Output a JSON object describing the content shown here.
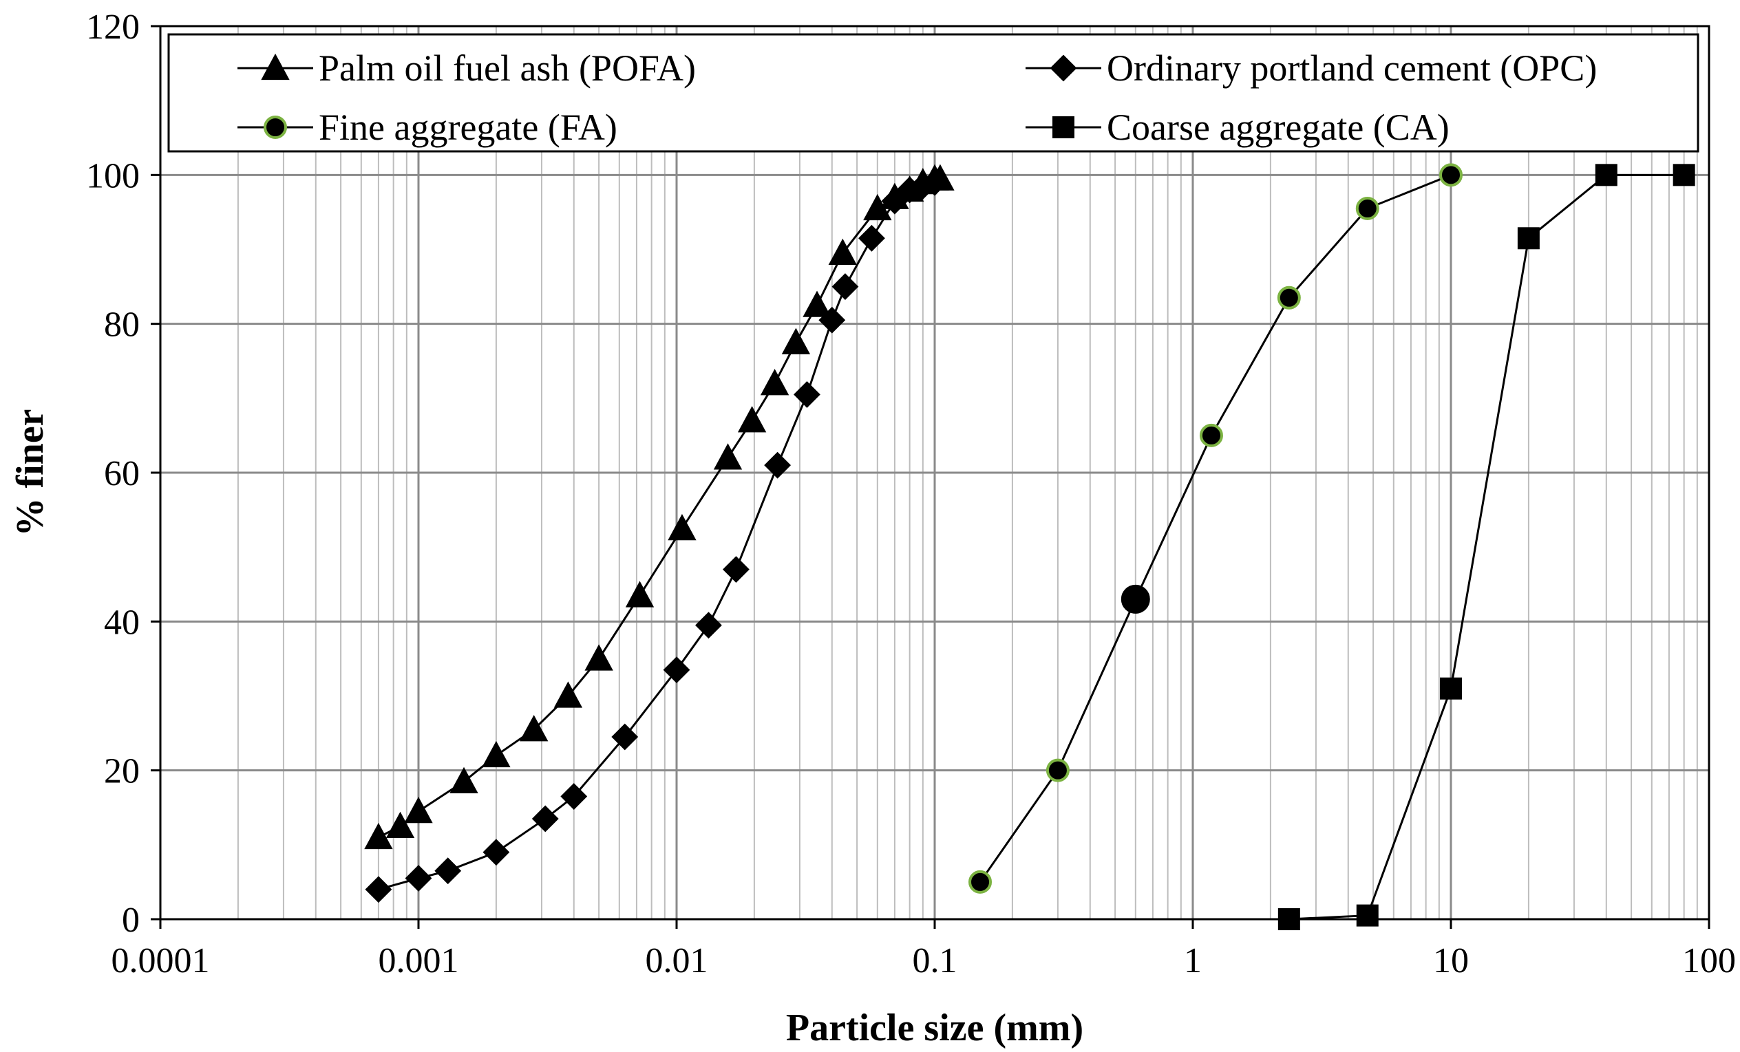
{
  "chart_data": {
    "type": "line",
    "xlabel": "Particle size (mm)",
    "ylabel": "% finer",
    "xscale": "log",
    "xlim": [
      0.0001,
      100
    ],
    "ylim": [
      0,
      120
    ],
    "x_ticks": [
      "0.0001",
      "0.001",
      "0.01",
      "0.1",
      "1",
      "10",
      "100"
    ],
    "y_ticks": [
      "0",
      "20",
      "40",
      "60",
      "80",
      "100",
      "120"
    ],
    "grid": true,
    "legend_position": "top",
    "series": [
      {
        "name": "Palm oil fuel ash (POFA)",
        "marker": "triangle",
        "marker_color": "#000000",
        "marker_edge": "#000000",
        "x": [
          0.0007,
          0.00085,
          0.001,
          0.0015,
          0.002,
          0.0028,
          0.0038,
          0.005,
          0.0072,
          0.0105,
          0.0158,
          0.0196,
          0.024,
          0.029,
          0.035,
          0.044,
          0.06,
          0.07,
          0.08,
          0.09,
          0.1,
          0.105
        ],
        "y": [
          11,
          12.5,
          14.5,
          18.5,
          22,
          25.5,
          30,
          35,
          43.5,
          52.5,
          62,
          67,
          72,
          77.5,
          82.5,
          89.5,
          95.5,
          97,
          98,
          99,
          99.5,
          99.5
        ]
      },
      {
        "name": "Ordinary portland cement (OPC)",
        "marker": "diamond",
        "marker_color": "#000000",
        "marker_edge": "#000000",
        "x": [
          0.0007,
          0.001,
          0.0013,
          0.002,
          0.0031,
          0.004,
          0.0063,
          0.01,
          0.0133,
          0.017,
          0.0246,
          0.032,
          0.04,
          0.045,
          0.057,
          0.07,
          0.08,
          0.09,
          0.1
        ],
        "y": [
          4,
          5.5,
          6.5,
          9,
          13.5,
          16.5,
          24.5,
          33.5,
          39.5,
          47,
          61,
          70.5,
          80.5,
          85,
          91.5,
          96.5,
          98,
          98.5,
          99
        ]
      },
      {
        "name": "Fine aggregate (FA)",
        "marker": "circle",
        "marker_color": "#000000",
        "marker_edge": "#7cb342",
        "x": [
          0.15,
          0.3,
          0.6,
          1.18,
          2.36,
          4.75,
          10
        ],
        "y": [
          5,
          20,
          43,
          65,
          83.5,
          95.5,
          100
        ]
      },
      {
        "name": "Coarse aggregate (CA)",
        "marker": "square",
        "marker_color": "#000000",
        "marker_edge": "#000000",
        "x": [
          2.36,
          4.75,
          10,
          20,
          40,
          80
        ],
        "y": [
          0,
          0.5,
          31,
          91.5,
          100,
          100
        ]
      }
    ]
  }
}
